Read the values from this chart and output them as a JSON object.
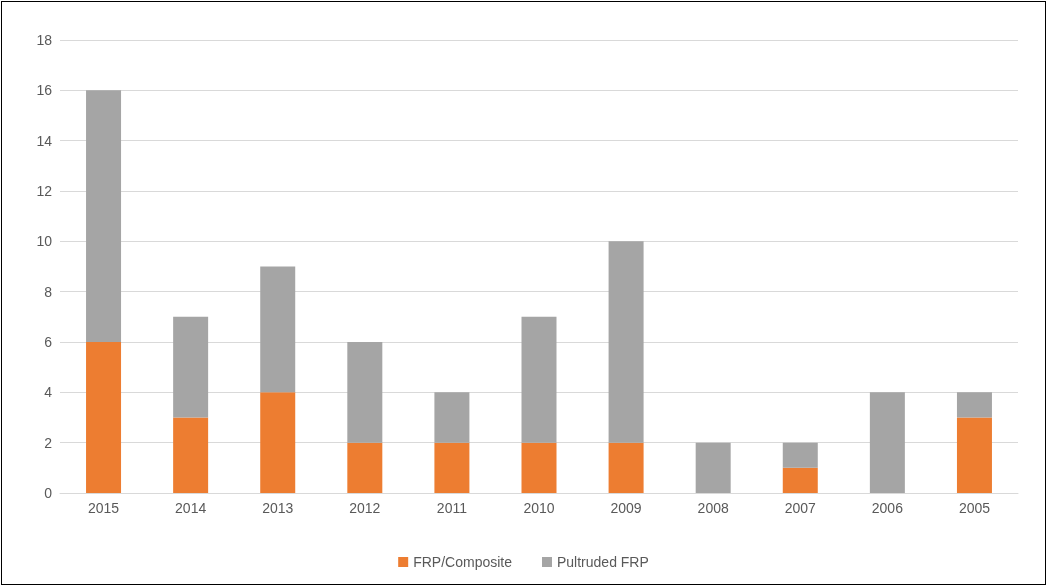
{
  "chart_data": {
    "type": "bar",
    "stacked": true,
    "categories": [
      "2015",
      "2014",
      "2013",
      "2012",
      "2011",
      "2010",
      "2009",
      "2008",
      "2007",
      "2006",
      "2005"
    ],
    "series": [
      {
        "name": "FRP/Composite",
        "color": "#ed7d31",
        "values": [
          6,
          3,
          4,
          2,
          2,
          2,
          2,
          0,
          1,
          0,
          3
        ]
      },
      {
        "name": "Pultruded FRP",
        "color": "#a5a5a5",
        "values": [
          10,
          4,
          5,
          4,
          2,
          5,
          8,
          2,
          1,
          4,
          1
        ]
      }
    ],
    "ylim": [
      0,
      18
    ],
    "yticks": [
      0,
      2,
      4,
      6,
      8,
      10,
      12,
      14,
      16,
      18
    ],
    "grid": "y",
    "legend": "bottom"
  }
}
